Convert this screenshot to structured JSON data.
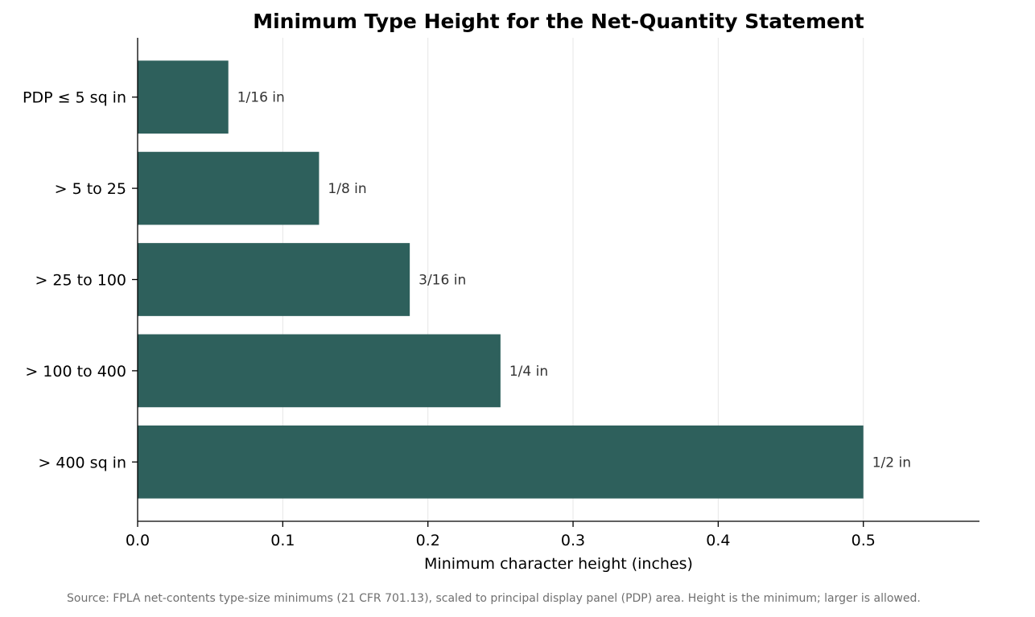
{
  "chart_data": {
    "type": "bar",
    "orientation": "horizontal",
    "title": "Minimum Type Height for the Net-Quantity Statement",
    "xlabel": "Minimum character height (inches)",
    "ylabel": "",
    "categories": [
      "PDP ≤ 5 sq in",
      "> 5 to 25",
      "> 25 to 100",
      "> 100 to 400",
      "> 400 sq in"
    ],
    "values": [
      0.0625,
      0.125,
      0.1875,
      0.25,
      0.5
    ],
    "data_labels": [
      "1/16 in",
      "1/8 in",
      "3/16 in",
      "1/4 in",
      "1/2 in"
    ],
    "xlim": [
      0,
      0.58
    ],
    "xticks": [
      0.0,
      0.1,
      0.2,
      0.3,
      0.4,
      0.5
    ],
    "xtick_labels": [
      "0.0",
      "0.1",
      "0.2",
      "0.3",
      "0.4",
      "0.5"
    ],
    "grid": "vertical",
    "bar_color": "#2e605c",
    "grid_color": "#e6e6e6"
  },
  "source_note": "Source: FPLA net-contents type-size minimums (21 CFR 701.13), scaled to principal display panel (PDP) area. Height is the minimum; larger is allowed."
}
